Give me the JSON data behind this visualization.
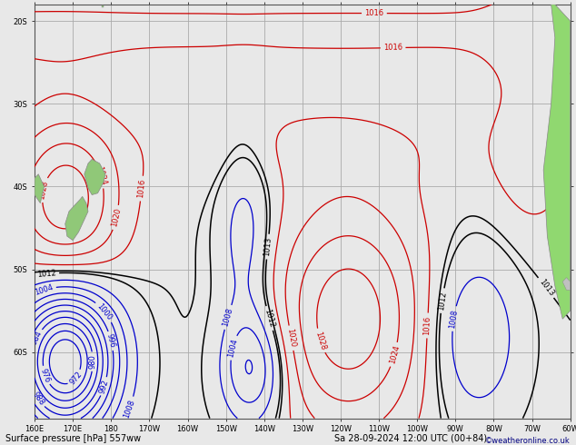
{
  "title_left": "Surface pressure [hPa] 557ww",
  "title_right": "Sa 28-09-2024 12:00 UTC (00+84)",
  "copyright": "©weatheronline.co.uk",
  "bg_color": "#e8e8e8",
  "land_color_nz": "#90c878",
  "land_color_sa": "#90d870",
  "land_edge": "#888888",
  "grid_color": "#aaaaaa",
  "blue_color": "#0000cc",
  "red_color": "#cc0000",
  "black_color": "#000000"
}
